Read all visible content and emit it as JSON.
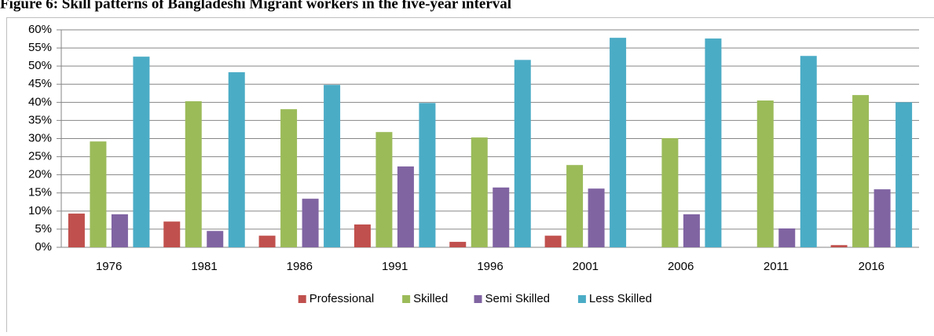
{
  "chart_data": {
    "type": "bar",
    "title": "Figure 6: Skill patterns of Bangladeshi Migrant workers in the five-year interval",
    "categories": [
      "1976",
      "1981",
      "1986",
      "1991",
      "1996",
      "2001",
      "2006",
      "2011",
      "2016"
    ],
    "series": [
      {
        "name": "Professional",
        "color": "#c0504d",
        "values": [
          9.3,
          7.1,
          3.2,
          6.3,
          1.5,
          3.2,
          0,
          0,
          0.6
        ]
      },
      {
        "name": "Skilled",
        "color": "#9bbb59",
        "values": [
          29.2,
          40.3,
          38.1,
          31.8,
          30.3,
          22.7,
          30.1,
          40.5,
          42
        ]
      },
      {
        "name": "Semi Skilled",
        "color": "#8064a2",
        "values": [
          9.1,
          4.5,
          13.4,
          22.3,
          16.5,
          16.2,
          9.1,
          5.2,
          16
        ]
      },
      {
        "name": "Less Skilled",
        "color": "#4bacc6",
        "values": [
          52.6,
          48.3,
          44.8,
          39.8,
          51.7,
          57.8,
          57.6,
          52.8,
          40
        ]
      }
    ],
    "ylim": [
      0,
      60
    ],
    "yticks": [
      {
        "value": 0,
        "label": "0%"
      },
      {
        "value": 5,
        "label": "5%"
      },
      {
        "value": 10,
        "label": "10%"
      },
      {
        "value": 15,
        "label": "15%"
      },
      {
        "value": 20,
        "label": "20%"
      },
      {
        "value": 25,
        "label": "25%"
      },
      {
        "value": 30,
        "label": "30%"
      },
      {
        "value": 35,
        "label": "35%"
      },
      {
        "value": 40,
        "label": "40%"
      },
      {
        "value": 45,
        "label": "45%"
      },
      {
        "value": 50,
        "label": "50%"
      },
      {
        "value": 55,
        "label": "55%"
      },
      {
        "value": 60,
        "label": "60%"
      }
    ],
    "grid": true,
    "legend": "bottom"
  }
}
